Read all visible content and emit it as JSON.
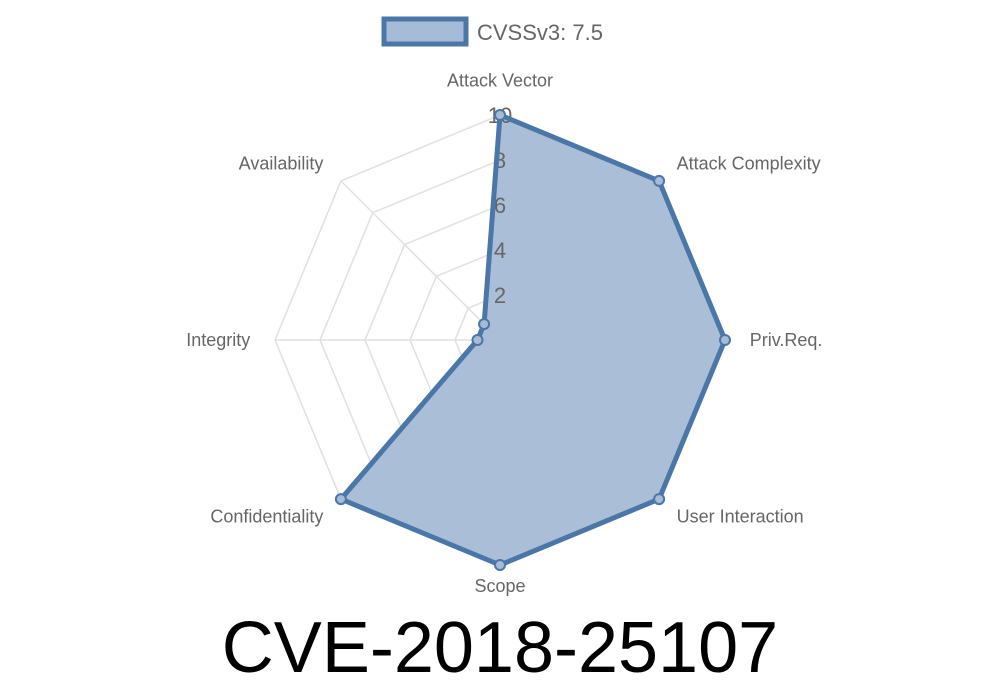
{
  "chart_data": {
    "type": "radar",
    "categories": [
      "Attack Vector",
      "Attack Complexity",
      "Priv.Req.",
      "User Interaction",
      "Scope",
      "Confidentiality",
      "Integrity",
      "Availability"
    ],
    "series": [
      {
        "name": "CVSSv3: 7.5",
        "values": [
          10,
          10,
          10,
          10,
          10,
          10,
          1,
          1
        ]
      }
    ],
    "rlim": [
      0,
      10
    ],
    "ticks": [
      2,
      4,
      6,
      8,
      10
    ],
    "tick_labels": [
      "2",
      "4",
      "6",
      "8",
      "10"
    ],
    "grid": true,
    "legend": "top",
    "colors": {
      "line": "#4a76a8",
      "fill": "#a6bbd5",
      "grid": "#e0e0e0"
    }
  },
  "title": "CVE-2018-25107"
}
